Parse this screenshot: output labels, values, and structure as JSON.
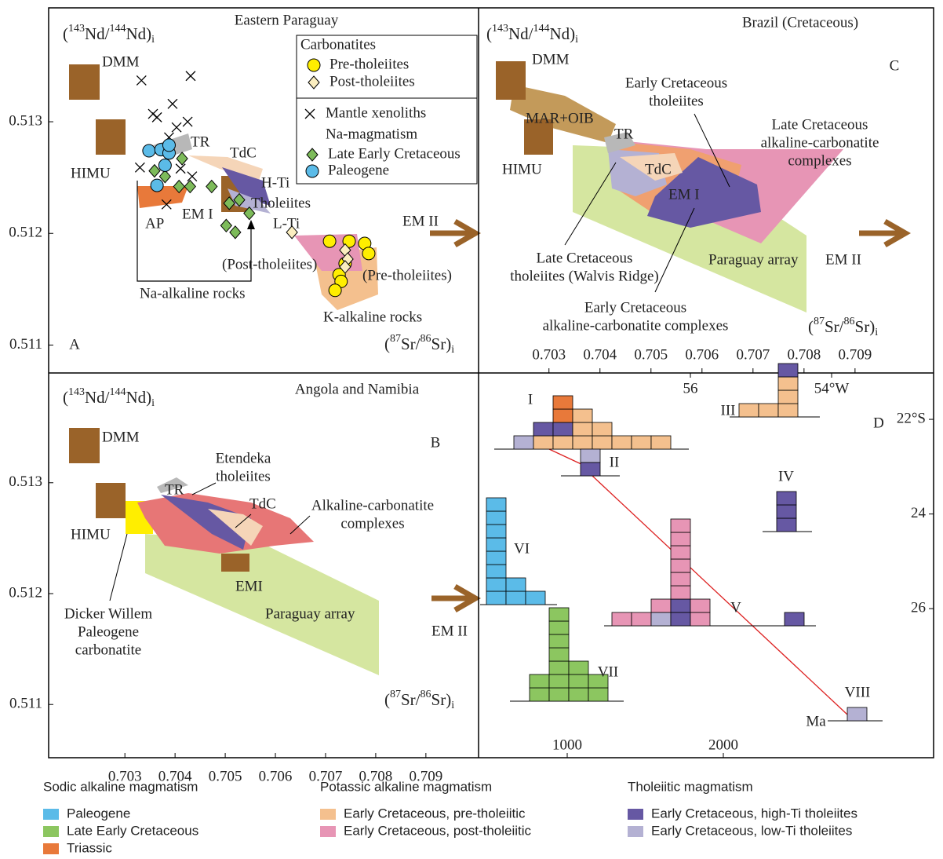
{
  "chart_data": [
    {
      "type": "scatter",
      "letter": "A",
      "title": "Eastern Paraguay",
      "ylabel": [
        "(",
        "143",
        "Nd/",
        "144",
        "Nd)",
        "i"
      ],
      "xlabel": [
        "(",
        "87",
        "Sr/",
        "86",
        "Sr)",
        "i"
      ],
      "xlim": [
        0.70148,
        0.71005
      ],
      "ylim": [
        0.51075,
        0.51402
      ],
      "yticks": [
        0.511,
        0.512,
        0.513
      ],
      "legend_headers": [
        "Carbonatites",
        "Na-magmatism"
      ],
      "series": [
        {
          "name": "Pre-tholeiites",
          "marker": "circle",
          "color": "#ffee00",
          "x": [
            0.70708,
            0.70747,
            0.70778,
            0.70786,
            0.70739,
            0.70727,
            0.70731,
            0.70719
          ],
          "y": [
            0.51193,
            0.51193,
            0.51191,
            0.51182,
            0.51173,
            0.51163,
            0.51157,
            0.51149
          ]
        },
        {
          "name": "Post-tholeiites",
          "marker": "diamond",
          "color": "#fbeec0",
          "x": [
            0.70633,
            0.70739,
            0.70744,
            0.70739
          ],
          "y": [
            0.51201,
            0.51185,
            0.51177,
            0.5117
          ]
        },
        {
          "name": "Mantle xenoliths",
          "marker": "cross",
          "color": "#000000",
          "x": [
            0.70333,
            0.70431,
            0.70395,
            0.70364,
            0.70425,
            0.70388,
            0.7033,
            0.70411,
            0.70434,
            0.70383,
            0.70356,
            0.70403
          ],
          "y": [
            0.51337,
            0.51341,
            0.51316,
            0.51304,
            0.513,
            0.51286,
            0.51259,
            0.51258,
            0.51251,
            0.51226,
            0.51307,
            0.51295
          ]
        },
        {
          "name": "Late Early Cretaceous",
          "marker": "diamond",
          "color": "#7dbb5a",
          "x": [
            0.70359,
            0.7038,
            0.70408,
            0.7043,
            0.70473,
            0.70508,
            0.70528,
            0.70548,
            0.70502,
            0.7052,
            0.70414
          ],
          "y": [
            0.51256,
            0.51251,
            0.51242,
            0.51242,
            0.51242,
            0.51227,
            0.5123,
            0.51218,
            0.51207,
            0.51201,
            0.51267
          ]
        },
        {
          "name": "Paleogene",
          "marker": "circle",
          "color": "#5bbbe8",
          "x": [
            0.70348,
            0.70372,
            0.70388,
            0.7038,
            0.70364,
            0.70388
          ],
          "y": [
            0.51274,
            0.51275,
            0.51272,
            0.51261,
            0.51243,
            0.51279
          ]
        }
      ],
      "annotations": [
        [
          "DMM"
        ],
        [
          "HIMU"
        ],
        [
          "TR"
        ],
        [
          "TdC"
        ],
        [
          "H-Ti"
        ],
        [
          "Tholeiites"
        ],
        [
          "EM I"
        ],
        [
          "AP"
        ],
        [
          "L-Ti"
        ],
        [
          "EM II"
        ],
        [
          "(Post-tholeiites)"
        ],
        [
          "(Pre-tholeiites)"
        ],
        [
          "Na-alkaline rocks"
        ],
        [
          "K-alkaline rocks"
        ]
      ]
    },
    {
      "type": "scatter",
      "letter": "B",
      "title": "Angola and Namibia",
      "ylabel": [
        "(",
        "143",
        "Nd/",
        "144",
        "Nd)",
        "i"
      ],
      "xlabel": [
        "(",
        "87",
        "Sr/",
        "86",
        "Sr)",
        "i"
      ],
      "xlim": [
        0.70148,
        0.71005
      ],
      "ylim": [
        0.51052,
        0.51399
      ],
      "xticks": [
        0.703,
        0.704,
        0.705,
        0.706,
        0.707,
        0.708,
        0.709
      ],
      "yticks": [
        0.511,
        0.512,
        0.513
      ],
      "annotations": [
        [
          "DMM"
        ],
        [
          "HIMU"
        ],
        [
          "TR"
        ],
        [
          "Etendeka",
          "tholeiites"
        ],
        [
          "TdC"
        ],
        [
          "Alkaline-carbonatite",
          "complexes"
        ],
        [
          "EMI"
        ],
        [
          "Paraguay array"
        ],
        [
          "EM II"
        ],
        [
          "Dicker Willem",
          "Paleogene",
          "carbonatite"
        ]
      ]
    },
    {
      "type": "scatter",
      "letter": "C",
      "title": "Brazil (Cretaceous)",
      "ylabel": [
        "(",
        "143",
        "Nd/",
        "144",
        "Nd)",
        "i"
      ],
      "xlabel": [
        "(",
        "87",
        "Sr/",
        "86",
        "Sr)",
        "i"
      ],
      "xlim": [
        0.70162,
        0.71054
      ],
      "xticks": [
        0.703,
        0.704,
        0.705,
        0.706,
        0.707,
        0.708,
        0.709
      ],
      "annotations": [
        [
          "DMM"
        ],
        [
          "HIMU"
        ],
        [
          "MAR+OIB"
        ],
        [
          "TR"
        ],
        [
          "TdC"
        ],
        [
          "EM I"
        ],
        [
          "Early Cretaceous",
          "tholeiites"
        ],
        [
          "Late Cretaceous",
          "alkaline-carbonatite",
          "complexes"
        ],
        [
          "Late Cretaceous",
          "tholeiites (Walvis Ridge)"
        ],
        [
          "Early Cretaceous",
          "alkaline-carbonatite complexes"
        ],
        [
          "Paraguay array"
        ],
        [
          "EM II"
        ]
      ]
    },
    {
      "type": "histogram-map",
      "letter": "D",
      "xlabel": "Ma",
      "xlim": [
        432,
        3347
      ],
      "xticks": [
        1000,
        2000
      ],
      "lonlim": [
        59.0,
        52.556
      ],
      "lonticks": [
        56,
        {
          "value": 54,
          "label": "54°W"
        }
      ],
      "latlim": [
        21.02,
        29.15
      ],
      "latticks": [
        {
          "value": 22,
          "label": "22°S"
        },
        24,
        26
      ],
      "groups": [
        {
          "label": "I",
          "columns": [
            [
              6
            ],
            [
              3,
              5
            ],
            [
              3,
              5,
              2,
              2
            ],
            [
              3,
              3,
              3
            ],
            [
              3,
              3
            ],
            [
              3
            ],
            [
              3
            ],
            [
              3
            ]
          ]
        },
        {
          "label": "II",
          "columns": [
            [
              5,
              6
            ]
          ]
        },
        {
          "label": "III",
          "columns": [
            [
              3
            ],
            [
              3
            ],
            [
              3,
              3,
              3,
              5
            ]
          ]
        },
        {
          "label": "IV",
          "columns": [
            [
              5,
              5,
              5
            ]
          ]
        },
        {
          "label": "V",
          "columns": [
            [
              4
            ],
            [
              4
            ],
            [
              6,
              4
            ],
            [
              5,
              5,
              4,
              4,
              4,
              4,
              4,
              4
            ],
            [
              4,
              4
            ],
            [
              5
            ]
          ]
        },
        {
          "label": "VI",
          "columns": [
            [
              0,
              0,
              0,
              0,
              0,
              0,
              0,
              0
            ],
            [
              0,
              0
            ],
            [
              0
            ]
          ]
        },
        {
          "label": "VII",
          "columns": [
            [
              1,
              1
            ],
            [
              1,
              1,
              1,
              1,
              1,
              1,
              1
            ],
            [
              1,
              1,
              1
            ],
            [
              1,
              1
            ]
          ]
        },
        {
          "label": "VIII",
          "columns": [
            [
              6
            ]
          ]
        }
      ]
    }
  ],
  "legend": [
    {
      "title": "Sodic alkaline magmatism",
      "items": [
        {
          "label": "Paleogene",
          "color": "#5bbbe8"
        },
        {
          "label": "Late Early Cretaceous",
          "color": "#8cc660"
        },
        {
          "label": "Triassic",
          "color": "#e8793a"
        }
      ]
    },
    {
      "title": "Potassic alkaline magmatism",
      "items": [
        {
          "label": "Early Cretaceous, pre-tholeiitic",
          "color": "#f4c08e"
        },
        {
          "label": "Early Cretaceous, post-tholeiitic",
          "color": "#e795b5"
        }
      ]
    },
    {
      "title": "Tholeiitic magmatism",
      "items": [
        {
          "label": "Early Cretaceous, high-Ti tholeiites",
          "color": "#6658a3"
        },
        {
          "label": "Early Cretaceous, low-Ti tholeiites",
          "color": "#b4b1d3"
        }
      ]
    }
  ]
}
